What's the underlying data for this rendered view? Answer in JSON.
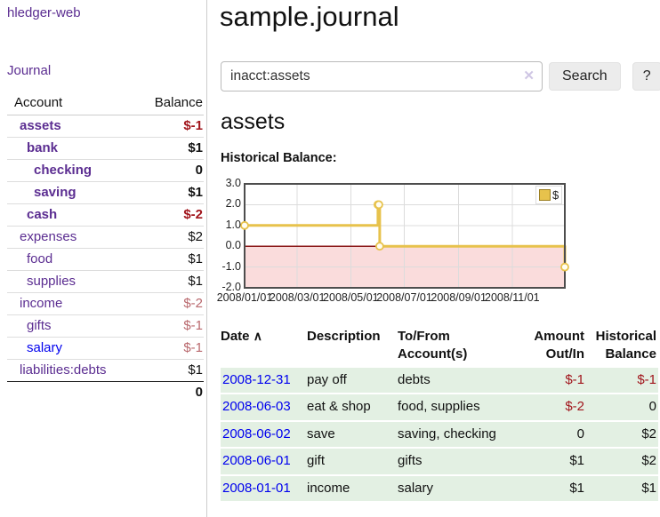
{
  "app": {
    "brand": "hledger-web",
    "nav_journal": "Journal"
  },
  "sidebar": {
    "headers": {
      "account": "Account",
      "balance": "Balance"
    },
    "accounts": [
      {
        "name": "assets",
        "depth": 1,
        "balance": "$-1",
        "bold": true,
        "negative": true
      },
      {
        "name": "bank",
        "depth": 2,
        "balance": "$1",
        "bold": true,
        "negative": false
      },
      {
        "name": "checking",
        "depth": 3,
        "balance": "0",
        "bold": true,
        "negative": false
      },
      {
        "name": "saving",
        "depth": 3,
        "balance": "$1",
        "bold": true,
        "negative": false
      },
      {
        "name": "cash",
        "depth": 2,
        "balance": "$-2",
        "bold": true,
        "negative": true
      },
      {
        "name": "expenses",
        "depth": 1,
        "balance": "$2",
        "bold": false,
        "negative": false
      },
      {
        "name": "food",
        "depth": 2,
        "balance": "$1",
        "bold": false,
        "negative": false
      },
      {
        "name": "supplies",
        "depth": 2,
        "balance": "$1",
        "bold": false,
        "negative": false
      },
      {
        "name": "income",
        "depth": 1,
        "balance": "$-2",
        "bold": false,
        "negative": true
      },
      {
        "name": "gifts",
        "depth": 2,
        "balance": "$-1",
        "bold": false,
        "negative": true
      },
      {
        "name": "salary",
        "depth": 2,
        "balance": "$-1",
        "bold": false,
        "negative": true,
        "link_color": "blue"
      },
      {
        "name": "liabilities:debts",
        "depth": 1,
        "balance": "$1",
        "bold": false,
        "negative": false
      }
    ],
    "total": "0"
  },
  "header": {
    "title": "sample.journal"
  },
  "search": {
    "value": "inacct:assets",
    "clear_icon": "✕",
    "button_label": "Search",
    "help_label": "?"
  },
  "main": {
    "account_title": "assets",
    "chart_label": "Historical Balance:"
  },
  "chart_data": {
    "type": "line",
    "title": "Historical Balance",
    "step": true,
    "legend": [
      {
        "label": "$",
        "color": "#e7c24c"
      }
    ],
    "x_range": [
      "2008/01/01",
      "2008/12/31"
    ],
    "x_ticks": [
      "2008/01/01",
      "2008/03/01",
      "2008/05/01",
      "2008/07/01",
      "2008/09/01",
      "2008/11/01"
    ],
    "y_ticks": [
      3.0,
      2.0,
      1.0,
      0.0,
      -1.0,
      -2.0
    ],
    "ylim": [
      -2,
      3
    ],
    "points": [
      {
        "date": "2008/01/01",
        "value": 1
      },
      {
        "date": "2008/06/01",
        "value": 2
      },
      {
        "date": "2008/06/02",
        "value": 2
      },
      {
        "date": "2008/06/03",
        "value": 0
      },
      {
        "date": "2008/12/31",
        "value": -1
      }
    ],
    "colors": {
      "line": "#e7c24c",
      "marker_fill": "#fffdf2",
      "negative_region": "#fadcdc",
      "zero_line": "#8b1a1a",
      "grid": "#dcdcdc",
      "border": "#4d4d4d"
    }
  },
  "register": {
    "headers": {
      "date": "Date",
      "sort_icon": "∧",
      "description": "Description",
      "tofrom": "To/From Account(s)",
      "amount": "Amount Out/In",
      "balance": "Historical Balance"
    },
    "rows": [
      {
        "date": "2008-12-31",
        "description": "pay off",
        "accounts": "debts",
        "amount": "$-1",
        "balance": "$-1",
        "amount_neg": true,
        "balance_neg": true
      },
      {
        "date": "2008-06-03",
        "description": "eat & shop",
        "accounts": "food, supplies",
        "amount": "$-2",
        "balance": "0",
        "amount_neg": true,
        "balance_neg": false
      },
      {
        "date": "2008-06-02",
        "description": "save",
        "accounts": "saving, checking",
        "amount": "0",
        "balance": "$2",
        "amount_neg": false,
        "balance_neg": false
      },
      {
        "date": "2008-06-01",
        "description": "gift",
        "accounts": "gifts",
        "amount": "$1",
        "balance": "$2",
        "amount_neg": false,
        "balance_neg": false
      },
      {
        "date": "2008-01-01",
        "description": "income",
        "accounts": "salary",
        "amount": "$1",
        "balance": "$1",
        "amount_neg": false,
        "balance_neg": false
      }
    ]
  }
}
